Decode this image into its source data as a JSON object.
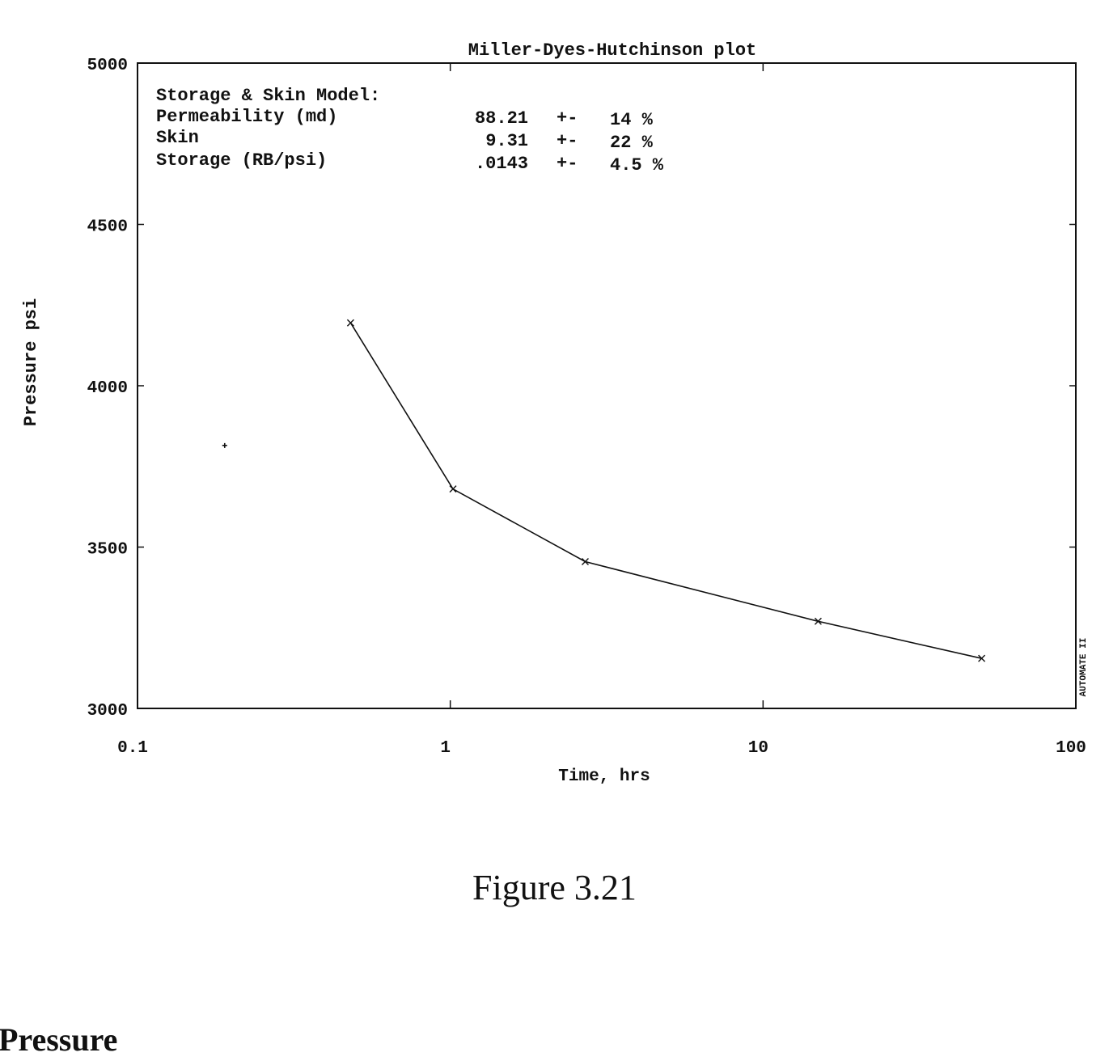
{
  "chart_data": {
    "type": "line",
    "title": "Miller-Dyes-Hutchinson plot",
    "xlabel": "Time, hrs",
    "ylabel": "Pressure psi",
    "xscale": "log",
    "xlim": [
      0.1,
      100
    ],
    "ylim": [
      3000,
      5000
    ],
    "x_ticks": [
      "0.1",
      "1",
      "10",
      "100"
    ],
    "y_ticks": [
      "3000",
      "3500",
      "4000",
      "4500",
      "5000"
    ],
    "grid": false,
    "series": [
      {
        "x": [
          0.48,
          1.02,
          2.7,
          15,
          50
        ],
        "y": [
          4195,
          3680,
          3455,
          3270,
          3155
        ]
      }
    ],
    "stray_points": [
      {
        "x": 0.19,
        "y": 3815
      }
    ],
    "model_box": {
      "title": "Storage & Skin Model:",
      "rows": [
        {
          "label": "Permeability (md)",
          "value": "88.21",
          "pm": "+-",
          "err": "14 %"
        },
        {
          "label": "Skin",
          "value": "9.31",
          "pm": "+-",
          "err": "22 %"
        },
        {
          "label": "Storage (RB/psi)",
          "value": ".0143",
          "pm": "+-",
          "err": "4.5 %"
        }
      ]
    },
    "side_label": "AUTOMATE II"
  },
  "caption": "Figure 3.21",
  "section_heading": "Pressure"
}
